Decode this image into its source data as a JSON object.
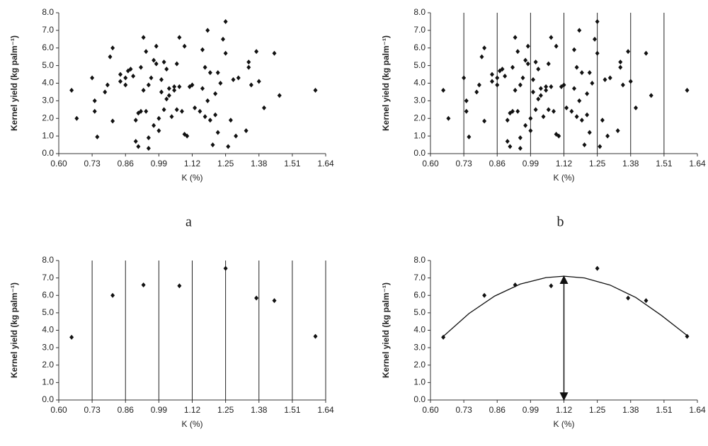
{
  "chart_data": [
    {
      "type": "scatter",
      "panel_label": "a",
      "x_label": "K (%)",
      "y_label": "Kernel yield (kg palm⁻¹)",
      "xlim": [
        0.6,
        1.64
      ],
      "ylim": [
        0,
        8
      ],
      "xticks": [
        {
          "value": 0.6,
          "label": "0.60"
        },
        0.73,
        0.86,
        0.99,
        1.12,
        1.25,
        1.38,
        1.51,
        1.64
      ],
      "yticks": [
        {
          "value": 0,
          "label": "0.0"
        },
        {
          "value": 1,
          "label": "1.0"
        },
        {
          "value": 2,
          "label": "2.0"
        },
        {
          "value": 3,
          "label": "3.0"
        },
        {
          "value": 4,
          "label": "4.0"
        },
        {
          "value": 5,
          "label": "5.0"
        },
        {
          "value": 6,
          "label": "6.0"
        },
        {
          "value": 7,
          "label": "7.0"
        },
        {
          "value": 8,
          "label": "8.0"
        }
      ],
      "color": "#111111",
      "x": [
        0.65,
        0.67,
        0.73,
        0.74,
        0.74,
        0.75,
        0.78,
        0.79,
        0.8,
        0.81,
        0.81,
        0.84,
        0.84,
        0.86,
        0.86,
        0.87,
        0.88,
        0.89,
        0.9,
        0.9,
        0.91,
        0.91,
        0.92,
        0.92,
        0.93,
        0.93,
        0.94,
        0.94,
        0.95,
        0.95,
        0.95,
        0.96,
        0.97,
        0.97,
        0.98,
        0.98,
        0.99,
        0.99,
        1.0,
        1.0,
        1.01,
        1.01,
        1.02,
        1.02,
        1.03,
        1.03,
        1.04,
        1.05,
        1.05,
        1.06,
        1.06,
        1.07,
        1.07,
        1.08,
        1.09,
        1.09,
        1.1,
        1.11,
        1.12,
        1.13,
        1.15,
        1.16,
        1.16,
        1.17,
        1.17,
        1.18,
        1.18,
        1.19,
        1.19,
        1.2,
        1.21,
        1.21,
        1.22,
        1.22,
        1.23,
        1.24,
        1.25,
        1.25,
        1.26,
        1.27,
        1.28,
        1.29,
        1.3,
        1.33,
        1.34,
        1.34,
        1.35,
        1.37,
        1.38,
        1.4,
        1.44,
        1.46,
        1.6
      ],
      "values": [
        3.6,
        2.0,
        4.3,
        2.4,
        3.0,
        0.95,
        3.5,
        3.9,
        5.5,
        6.0,
        1.85,
        4.1,
        4.5,
        3.9,
        4.3,
        4.7,
        4.8,
        4.4,
        1.9,
        0.7,
        0.4,
        2.3,
        4.9,
        2.4,
        6.6,
        3.6,
        5.8,
        2.4,
        0.9,
        0.3,
        3.9,
        4.3,
        5.3,
        1.6,
        6.1,
        5.1,
        1.3,
        2.0,
        3.5,
        4.2,
        2.5,
        5.2,
        3.1,
        4.8,
        3.7,
        3.3,
        2.1,
        3.8,
        3.6,
        5.1,
        2.5,
        6.6,
        3.8,
        2.4,
        6.1,
        1.1,
        1.0,
        3.8,
        3.9,
        2.6,
        2.4,
        5.9,
        3.7,
        2.1,
        4.9,
        7.0,
        3.0,
        4.6,
        1.9,
        0.5,
        2.2,
        3.4,
        1.2,
        4.6,
        4.0,
        6.5,
        7.5,
        5.7,
        0.4,
        1.9,
        4.2,
        1.0,
        4.3,
        1.3,
        4.9,
        5.2,
        3.9,
        5.8,
        4.1,
        2.6,
        5.7,
        3.3,
        3.6
      ]
    },
    {
      "type": "scatter",
      "panel_label": "b",
      "x_label": "K (%)",
      "y_label": "Kernel yield (kg palm⁻¹)",
      "xlim": [
        0.6,
        1.64
      ],
      "ylim": [
        0,
        8
      ],
      "xticks": [
        {
          "value": 0.6,
          "label": "0.60"
        },
        0.73,
        0.86,
        0.99,
        1.12,
        1.25,
        1.38,
        1.51,
        1.64
      ],
      "yticks": [
        {
          "value": 0,
          "label": "0.0"
        },
        {
          "value": 1,
          "label": "1.0"
        },
        {
          "value": 2,
          "label": "2.0"
        },
        {
          "value": 3,
          "label": "3.0"
        },
        {
          "value": 4,
          "label": "4.0"
        },
        {
          "value": 5,
          "label": "5.0"
        },
        {
          "value": 6,
          "label": "6.0"
        },
        {
          "value": 7,
          "label": "7.0"
        },
        {
          "value": 8,
          "label": "8.0"
        }
      ],
      "color": "#111111",
      "vlines": [
        0.73,
        0.86,
        0.99,
        1.12,
        1.25,
        1.38,
        1.51
      ],
      "x": [
        0.65,
        0.67,
        0.73,
        0.74,
        0.74,
        0.75,
        0.78,
        0.79,
        0.8,
        0.81,
        0.81,
        0.84,
        0.84,
        0.86,
        0.86,
        0.87,
        0.88,
        0.89,
        0.9,
        0.9,
        0.91,
        0.91,
        0.92,
        0.92,
        0.93,
        0.93,
        0.94,
        0.94,
        0.95,
        0.95,
        0.95,
        0.96,
        0.97,
        0.97,
        0.98,
        0.98,
        0.99,
        0.99,
        1.0,
        1.0,
        1.01,
        1.01,
        1.02,
        1.02,
        1.03,
        1.03,
        1.04,
        1.05,
        1.05,
        1.06,
        1.06,
        1.07,
        1.07,
        1.08,
        1.09,
        1.09,
        1.1,
        1.11,
        1.12,
        1.13,
        1.15,
        1.16,
        1.16,
        1.17,
        1.17,
        1.18,
        1.18,
        1.19,
        1.19,
        1.2,
        1.21,
        1.21,
        1.22,
        1.22,
        1.23,
        1.24,
        1.25,
        1.25,
        1.26,
        1.27,
        1.28,
        1.29,
        1.3,
        1.33,
        1.34,
        1.34,
        1.35,
        1.37,
        1.38,
        1.4,
        1.44,
        1.46,
        1.6
      ],
      "values": [
        3.6,
        2.0,
        4.3,
        2.4,
        3.0,
        0.95,
        3.5,
        3.9,
        5.5,
        6.0,
        1.85,
        4.1,
        4.5,
        3.9,
        4.3,
        4.7,
        4.8,
        4.4,
        1.9,
        0.7,
        0.4,
        2.3,
        4.9,
        2.4,
        6.6,
        3.6,
        5.8,
        2.4,
        0.9,
        0.3,
        3.9,
        4.3,
        5.3,
        1.6,
        6.1,
        5.1,
        1.3,
        2.0,
        3.5,
        4.2,
        2.5,
        5.2,
        3.1,
        4.8,
        3.7,
        3.3,
        2.1,
        3.8,
        3.6,
        5.1,
        2.5,
        6.6,
        3.8,
        2.4,
        6.1,
        1.1,
        1.0,
        3.8,
        3.9,
        2.6,
        2.4,
        5.9,
        3.7,
        2.1,
        4.9,
        7.0,
        3.0,
        4.6,
        1.9,
        0.5,
        2.2,
        3.4,
        1.2,
        4.6,
        4.0,
        6.5,
        7.5,
        5.7,
        0.4,
        1.9,
        4.2,
        1.0,
        4.3,
        1.3,
        4.9,
        5.2,
        3.9,
        5.8,
        4.1,
        2.6,
        5.7,
        3.3,
        3.6
      ]
    },
    {
      "type": "scatter",
      "x_label": "K (%)",
      "y_label": "Kernel yield (kg palm⁻¹)",
      "xlim": [
        0.6,
        1.64
      ],
      "ylim": [
        0,
        8
      ],
      "xticks": [
        {
          "value": 0.6,
          "label": "0.60"
        },
        0.73,
        0.86,
        0.99,
        1.12,
        1.25,
        1.38,
        1.51,
        1.64
      ],
      "yticks": [
        {
          "value": 0,
          "label": "0.0"
        },
        {
          "value": 1,
          "label": "1.0"
        },
        {
          "value": 2,
          "label": "2.0"
        },
        {
          "value": 3,
          "label": "3.0"
        },
        {
          "value": 4,
          "label": "4.0"
        },
        {
          "value": 5,
          "label": "5.0"
        },
        {
          "value": 6,
          "label": "6.0"
        },
        {
          "value": 7,
          "label": "7.0"
        },
        {
          "value": 8,
          "label": "8.0"
        }
      ],
      "color": "#111111",
      "vlines": [
        0.73,
        0.86,
        0.99,
        1.12,
        1.25,
        1.38,
        1.51,
        1.64
      ],
      "x": [
        0.65,
        0.81,
        0.93,
        1.07,
        1.25,
        1.37,
        1.44,
        1.6
      ],
      "values": [
        3.6,
        6.0,
        6.6,
        6.55,
        7.55,
        5.85,
        5.7,
        3.65
      ]
    },
    {
      "type": "scatter",
      "x_label": "K (%)",
      "y_label": "Kernel yield (kg palm⁻¹)",
      "xlim": [
        0.6,
        1.64
      ],
      "ylim": [
        0,
        8
      ],
      "xticks": [
        {
          "value": 0.6,
          "label": "0.60"
        },
        0.73,
        0.86,
        0.99,
        1.12,
        1.25,
        1.38,
        1.51,
        1.64
      ],
      "yticks": [
        {
          "value": 0,
          "label": "0.0"
        },
        {
          "value": 1,
          "label": "1.0"
        },
        {
          "value": 2,
          "label": "2.0"
        },
        {
          "value": 3,
          "label": "3.0"
        },
        {
          "value": 4,
          "label": "4.0"
        },
        {
          "value": 5,
          "label": "5.0"
        },
        {
          "value": 6,
          "label": "6.0"
        },
        {
          "value": 7,
          "label": "7.0"
        },
        {
          "value": 8,
          "label": "8.0"
        }
      ],
      "color": "#111111",
      "x": [
        0.65,
        0.81,
        0.93,
        1.07,
        1.25,
        1.37,
        1.44,
        1.6
      ],
      "values": [
        3.6,
        6.0,
        6.6,
        6.55,
        7.55,
        5.85,
        5.7,
        3.65
      ],
      "fit": {
        "x": [
          0.65,
          0.75,
          0.85,
          0.95,
          1.05,
          1.12,
          1.2,
          1.3,
          1.4,
          1.5,
          1.6
        ],
        "values": [
          3.65,
          4.96,
          5.96,
          6.65,
          7.02,
          7.1,
          7.0,
          6.59,
          5.88,
          4.85,
          3.7
        ]
      },
      "optimum_x": 1.12,
      "optimum_y": 7.1
    }
  ]
}
